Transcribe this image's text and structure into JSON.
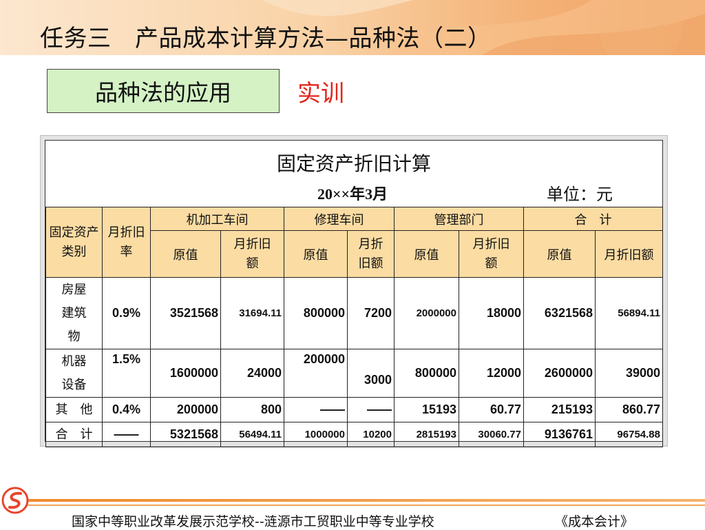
{
  "header": {
    "title": "任务三　产品成本计算方法—品种法（二）"
  },
  "section": {
    "label": "品种法的应用",
    "practice": "实训"
  },
  "table": {
    "title": "固定资产折旧计算",
    "date": "20××年3月",
    "unit": "单位：元",
    "headers": {
      "category": "固定资产类别",
      "rate": "月折旧率",
      "machining": "机加工车间",
      "repair": "修理车间",
      "management": "管理部门",
      "total": "合　计",
      "original": "原值",
      "dep_split": "月折旧额",
      "dep_split_a": "月折旧",
      "dep_split_b": "额",
      "dep_full": "月折旧额"
    },
    "rows": [
      {
        "category": "房屋建筑物",
        "rate": "0.9%",
        "mach_orig": "3521568",
        "mach_dep": "31694.11",
        "rep_orig": "800000",
        "rep_dep": "7200",
        "mgmt_orig": "2000000",
        "mgmt_dep": "18000",
        "tot_orig": "6321568",
        "tot_dep": "56894.11"
      },
      {
        "category": "机器设备",
        "rate": "1.5%",
        "mach_orig": "1600000",
        "mach_dep": "24000",
        "rep_orig": "200000",
        "rep_dep": "3000",
        "mgmt_orig": "800000",
        "mgmt_dep": "12000",
        "tot_orig": "2600000",
        "tot_dep": "39000"
      },
      {
        "category": "其　他",
        "rate": "0.4%",
        "mach_orig": "200000",
        "mach_dep": "800",
        "rep_orig": "——",
        "rep_dep": "——",
        "mgmt_orig": "15193",
        "mgmt_dep": "60.77",
        "tot_orig": "215193",
        "tot_dep": "860.77"
      },
      {
        "category": "合　计",
        "rate": "——",
        "mach_orig": "5321568",
        "mach_dep": "56494.11",
        "rep_orig": "1000000",
        "rep_dep": "10200",
        "mgmt_orig": "2815193",
        "mgmt_dep": "30060.77",
        "tot_orig": "9136761",
        "tot_dep": "96754.88"
      }
    ]
  },
  "footer": {
    "school": "国家中等职业改革发展示范学校--涟源市工贸职业中等专业学校",
    "book": "《成本会计》",
    "logo": "school-logo-icon"
  },
  "colors": {
    "header_gradient_start": "#fce7cf",
    "header_gradient_end": "#f0a264",
    "section_box": "#d4f2c4",
    "practice_red": "#e2261b",
    "table_header": "#fbdca3",
    "footer_line": "#f08a2c"
  }
}
